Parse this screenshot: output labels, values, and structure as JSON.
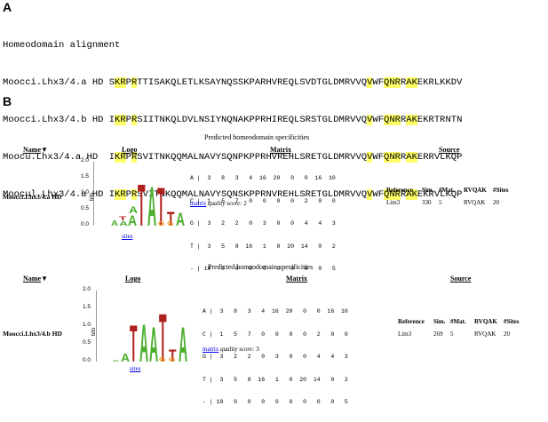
{
  "panel_a": {
    "label": "A",
    "title": "Homeodomain alignment",
    "rows": [
      {
        "name": "Moocci.Lhx3/4.a HD",
        "seq": "SKRPRTTISAKQLETLKSAYNQSSKPARHVREQLSVDTGLDMRVVQVWFQNRRAKEKRLKKDV"
      },
      {
        "name": "Moocci.Lhx3/4.b HD",
        "seq": "IKRPRSIITNKQLDVLNSIYNQNAKPPRHIREQLSRSTGLDMRVVQVWFQNRRAKEKRTRNTN"
      },
      {
        "name": "Moocu.Lhx3/4.a HD",
        "seq": "IKRPRSVITNKQQMALNAVYSQNPKPPRHVREHLSRETGLDMRVVQVWFQNRRAKERRVLKQP"
      },
      {
        "name": "Moocul.Lhx3/4.a HD",
        "seq": "IKRPRSVITNKQQMALNAVYSQNSKPPRNVREHLSRETGLDMRVVQVWFQNRRAKEKRVLKQP"
      }
    ],
    "highlight_color": "#ffff66"
  },
  "panel_b": {
    "label": "B",
    "blocks": [
      {
        "title": "Predicted homeodomain specificities",
        "col_name": "Name",
        "col_name_arrow": "▼",
        "col_logo": "Logo",
        "col_matrix": "Matrix",
        "col_source": "Source",
        "name": "Moocci.Lhx3/4.a HD",
        "y_ticks": [
          "2.0",
          "1.5",
          "1.0",
          "0.5",
          "0.0"
        ],
        "y_label": "bits",
        "sites_link": "sites",
        "matrix_rows": [
          "A |  3   8   3   4  16  20   0   0  16  10",
          "C |  1   5   7   0   0   0   0   2   0   0",
          "G |  3   2   2   0   3   0   0   4   4   3",
          "T |  3   5   8  16   1   0  20  14   0   2",
          "- | 10   0   0   0   0   0   0   0   0   5"
        ],
        "matrix_link": "matrix",
        "quality_label": "quality score:",
        "quality_value": "2",
        "source_headers": [
          "Reference",
          "Sim.",
          "#Mat.",
          "RVQAK",
          "#Sites"
        ],
        "source_values": [
          "Lim3",
          "330",
          "5",
          "RVQAK",
          "20"
        ]
      },
      {
        "title": "Predicted homeodomain specificities",
        "col_name": "Name",
        "col_name_arrow": "▼",
        "col_logo": "Logo",
        "col_matrix": "Matrix",
        "col_source": "Source",
        "name": "Moocci.Lhx3/4.b HD",
        "y_ticks": [
          "2.0",
          "1.5",
          "1.0",
          "0.5",
          "0.0"
        ],
        "y_label": "bits",
        "sites_link": "sites",
        "matrix_rows": [
          "A |  3   8   3   4  16  20   0   0  16  10",
          "C |  1   5   7   0   0   0   0   2   0   0",
          "G |  3   2   2   0   3   0   0   4   4   3",
          "T |  3   5   8  16   1   0  20  14   0   2",
          "- | 10   0   0   0   0   0   0   0   0   5"
        ],
        "matrix_link": "matrix",
        "quality_label": "quality score:",
        "quality_value": "3",
        "source_headers": [
          "Reference",
          "Sim.",
          "#Mat.",
          "RVQAK",
          "#Sites"
        ],
        "source_values": [
          "Lim3",
          "269",
          "5",
          "RVQAK",
          "20"
        ]
      }
    ]
  },
  "logo_colors": {
    "A": "#4caf2f",
    "T": "#b0201c",
    "G": "#f0a020",
    "C": "#2040c0"
  }
}
